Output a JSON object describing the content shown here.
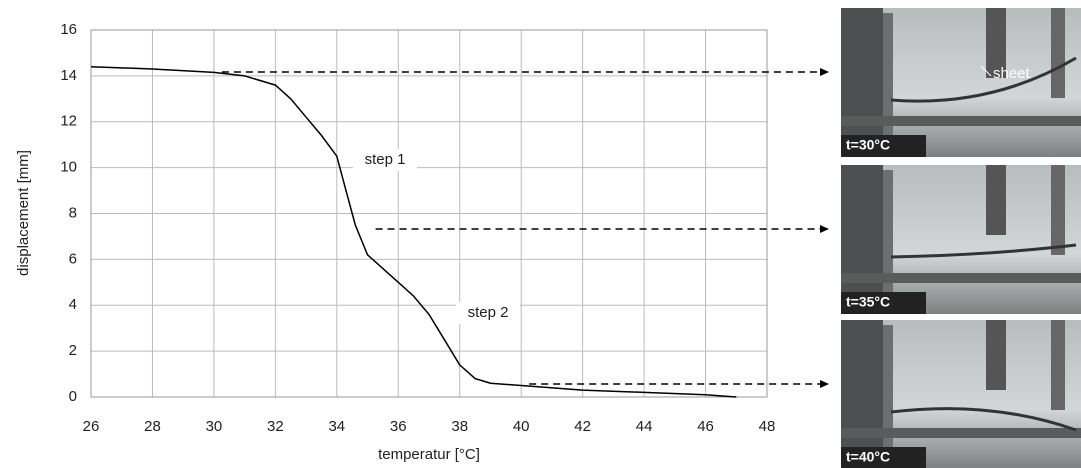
{
  "chart_data": {
    "type": "line",
    "x_label": "temperatur [°C]",
    "y_label": "displacement [mm]",
    "x": [
      26,
      28,
      30,
      31,
      32,
      32.5,
      33,
      33.5,
      34,
      34.3,
      34.6,
      35,
      35.5,
      36,
      36.5,
      37,
      37.5,
      38,
      38.5,
      39,
      40,
      42,
      44,
      46,
      47
    ],
    "values": [
      14.4,
      14.3,
      14.15,
      14.0,
      13.6,
      13.0,
      12.2,
      11.4,
      10.5,
      9.0,
      7.5,
      6.2,
      5.6,
      5.0,
      4.4,
      3.6,
      2.5,
      1.4,
      0.8,
      0.6,
      0.5,
      0.3,
      0.2,
      0.1,
      0.0
    ],
    "color": "#000000",
    "xlim": [
      26,
      48
    ],
    "xticks": [
      26,
      28,
      30,
      32,
      34,
      36,
      38,
      40,
      42,
      44,
      46,
      48
    ],
    "ylim": [
      0,
      16
    ],
    "yticks": [
      0,
      2,
      4,
      6,
      8,
      10,
      12,
      14,
      16
    ],
    "grid": true,
    "annotations": [
      "step 1",
      "step 2"
    ]
  },
  "photos": [
    {
      "label": "t=30°C",
      "note": "sheet"
    },
    {
      "label": "t=35°C"
    },
    {
      "label": "t=40°C"
    }
  ]
}
